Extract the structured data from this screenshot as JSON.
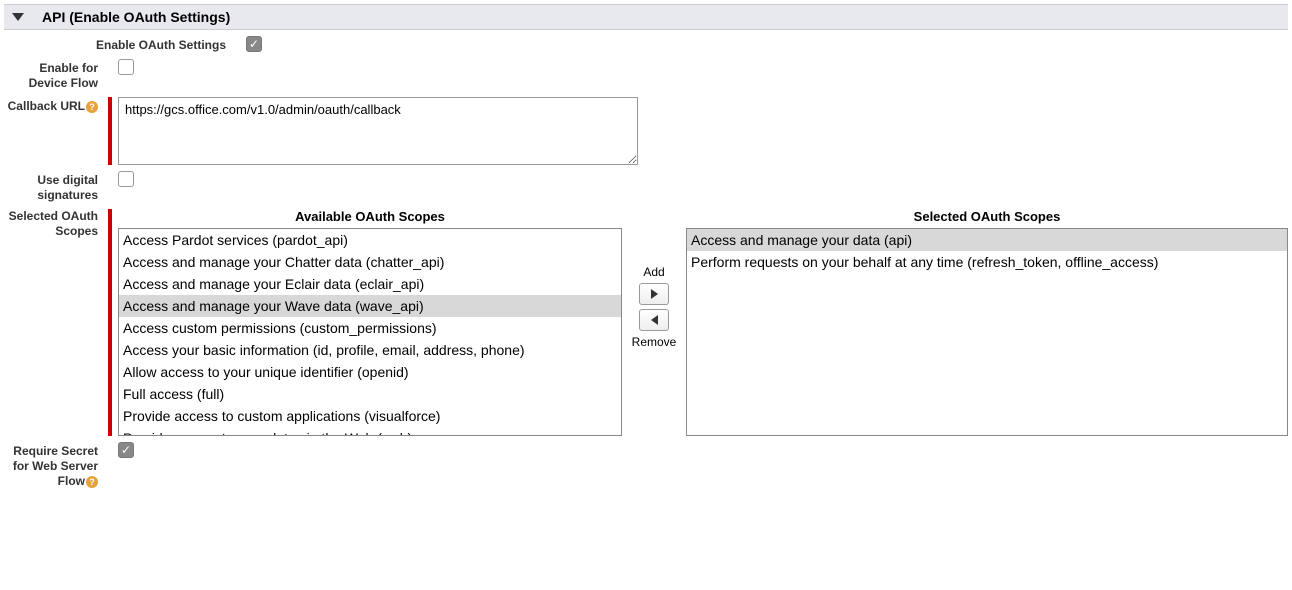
{
  "section": {
    "title": "API (Enable OAuth Settings)"
  },
  "fields": {
    "enable_oauth": {
      "label": "Enable OAuth Settings",
      "checked": true
    },
    "enable_device_flow": {
      "label": "Enable for Device Flow",
      "checked": false
    },
    "callback_url": {
      "label": "Callback URL",
      "value": "https://gcs.office.com/v1.0/admin/oauth/callback"
    },
    "use_digital_signatures": {
      "label": "Use digital signatures",
      "checked": false
    },
    "selected_oauth_scopes": {
      "label": "Selected OAuth Scopes"
    },
    "require_secret": {
      "label": "Require Secret for Web Server Flow",
      "checked": true
    }
  },
  "dual_list": {
    "available_title": "Available OAuth Scopes",
    "selected_title": "Selected OAuth Scopes",
    "add_label": "Add",
    "remove_label": "Remove",
    "available": [
      {
        "text": "Access Pardot services (pardot_api)",
        "highlighted": false
      },
      {
        "text": "Access and manage your Chatter data (chatter_api)",
        "highlighted": false
      },
      {
        "text": "Access and manage your Eclair data (eclair_api)",
        "highlighted": false
      },
      {
        "text": "Access and manage your Wave data (wave_api)",
        "highlighted": true
      },
      {
        "text": "Access custom permissions (custom_permissions)",
        "highlighted": false
      },
      {
        "text": "Access your basic information (id, profile, email, address, phone)",
        "highlighted": false
      },
      {
        "text": "Allow access to your unique identifier (openid)",
        "highlighted": false
      },
      {
        "text": "Full access (full)",
        "highlighted": false
      },
      {
        "text": "Provide access to custom applications (visualforce)",
        "highlighted": false
      },
      {
        "text": "Provide access to your data via the Web (web)",
        "highlighted": false
      }
    ],
    "selected": [
      {
        "text": "Access and manage your data (api)",
        "highlighted": true
      },
      {
        "text": "Perform requests on your behalf at any time (refresh_token, offline_access)",
        "highlighted": false
      }
    ]
  },
  "colors": {
    "section_bg": "#e8e8ef",
    "required_bar": "#c00",
    "highlight_bg": "#d8d8d8",
    "border": "#888"
  }
}
